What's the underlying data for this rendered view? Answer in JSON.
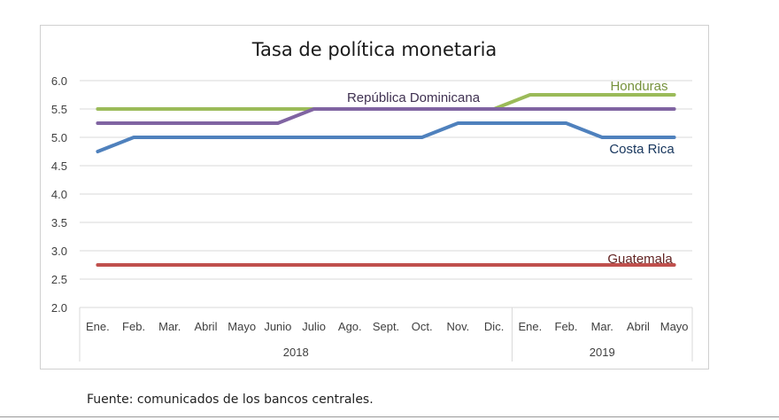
{
  "chart_data": {
    "type": "line",
    "title": "Tasa de política monetaria",
    "categories": [
      "Ene.",
      "Feb.",
      "Mar.",
      "Abril",
      "Mayo",
      "Junio",
      "Julio",
      "Ago.",
      "Sept.",
      "Oct.",
      "Nov.",
      "Dic.",
      "Ene.",
      "Feb.",
      "Mar.",
      "Abril",
      "Mayo"
    ],
    "year_groups": [
      {
        "label": "2018",
        "start": 0,
        "end": 11
      },
      {
        "label": "2019",
        "start": 12,
        "end": 16
      }
    ],
    "ylim": [
      2.0,
      6.0
    ],
    "yticks": [
      "2.0",
      "2.5",
      "3.0",
      "3.5",
      "4.0",
      "4.5",
      "5.0",
      "5.5",
      "6.0"
    ],
    "grid": true,
    "series": [
      {
        "name": "Honduras",
        "color": "#9bbb59",
        "values": [
          5.5,
          5.5,
          5.5,
          5.5,
          5.5,
          5.5,
          5.5,
          5.5,
          5.5,
          5.5,
          5.5,
          5.5,
          5.75,
          5.75,
          5.75,
          5.75,
          5.75
        ]
      },
      {
        "name": "República Dominicana",
        "color": "#8064a2",
        "values": [
          5.25,
          5.25,
          5.25,
          5.25,
          5.25,
          5.25,
          5.5,
          5.5,
          5.5,
          5.5,
          5.5,
          5.5,
          5.5,
          5.5,
          5.5,
          5.5,
          5.5
        ]
      },
      {
        "name": "Costa Rica",
        "color": "#4f81bd",
        "values": [
          4.75,
          5.0,
          5.0,
          5.0,
          5.0,
          5.0,
          5.0,
          5.0,
          5.0,
          5.0,
          5.25,
          5.25,
          5.25,
          5.25,
          5.0,
          5.0,
          5.0
        ]
      },
      {
        "name": "Guatemala",
        "color": "#c0504d",
        "values": [
          2.75,
          2.75,
          2.75,
          2.75,
          2.75,
          2.75,
          2.75,
          2.75,
          2.75,
          2.75,
          2.75,
          2.75,
          2.75,
          2.75,
          2.75,
          2.75,
          2.75
        ]
      }
    ],
    "label_colors": {
      "Honduras": "#76923c",
      "República Dominicana": "#3f3151",
      "Costa Rica": "#17365d",
      "Guatemala": "#632423"
    }
  },
  "source": "Fuente: comunicados de los bancos centrales."
}
